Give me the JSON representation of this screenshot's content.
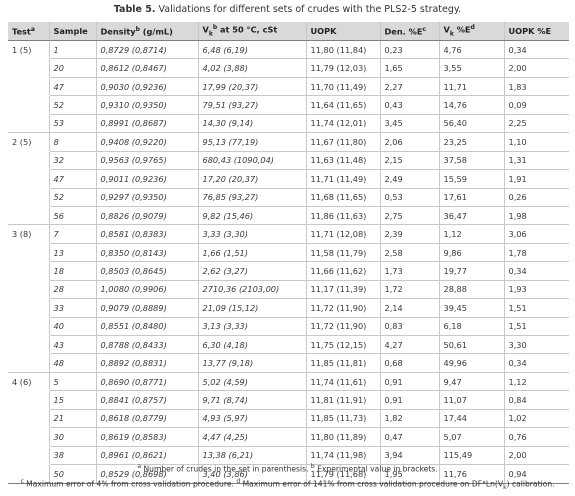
{
  "caption": {
    "label": "Table 5.",
    "text": "Validations for different sets of crudes with the PLS2-5 strategy."
  },
  "headers": {
    "test": "Test",
    "test_mark": "a",
    "sample": "Sample",
    "density": "Density",
    "density_mark": "b",
    "density_unit": " (g/mL)",
    "vk_main": "V",
    "vk_sub": "k",
    "vk_mark": "b",
    "vk_rest": " at 50 °C, cSt",
    "uopk": "UOPK",
    "den_err": "Den. %E",
    "den_err_mark": "c",
    "vk_err_main": "V",
    "vk_err_sub": "k",
    "vk_err_rest": " %E",
    "vk_err_mark": "d",
    "uopk_err": "UOPK %E"
  },
  "groups": [
    {
      "test": "1 (5)",
      "rows": [
        [
          "1",
          "0,8729 (0,8714)",
          "6,48 (6,19)",
          "11,80 (11,84)",
          "0,23",
          "4,76",
          "0,34"
        ],
        [
          "20",
          "0,8612 (0,8467)",
          "4,02 (3,88)",
          "11,79 (12,03)",
          "1,65",
          "3,55",
          "2,00"
        ],
        [
          "47",
          "0,9030 (0,9236)",
          "17,99 (20,37)",
          "11,70 (11,49)",
          "2,27",
          "11,71",
          "1,83"
        ],
        [
          "52",
          "0,9310 (0,9350)",
          "79,51 (93,27)",
          "11,64 (11,65)",
          "0,43",
          "14,76",
          "0,09"
        ],
        [
          "53",
          "0,8991 (0,8687)",
          "14,30 (9,14)",
          "11,74 (12,01)",
          "3,45",
          "56,40",
          "2,25"
        ]
      ]
    },
    {
      "test": "2 (5)",
      "rows": [
        [
          "8",
          "0,9408 (0,9220)",
          "95,13 (77,19)",
          "11,67 (11,80)",
          "2,06",
          "23,25",
          "1,10"
        ],
        [
          "32",
          "0,9563 (0,9765)",
          "680,43 (1090,04)",
          "11,63 (11,48)",
          "2,15",
          "37,58",
          "1,31"
        ],
        [
          "47",
          "0,9011 (0,9236)",
          "17,20 (20,37)",
          "11,71 (11,49)",
          "2,49",
          "15,59",
          "1,91"
        ],
        [
          "52",
          "0,9297 (0,9350)",
          "76,85 (93,27)",
          "11,68 (11,65)",
          "0,53",
          "17,61",
          "0,26"
        ],
        [
          "56",
          "0,8826 (0,9079)",
          "9,82 (15,46)",
          "11,86 (11,63)",
          "2,75",
          "36,47",
          "1,98"
        ]
      ]
    },
    {
      "test": "3 (8)",
      "rows": [
        [
          "7",
          "0,8581 (0,8383)",
          "3,33 (3,30)",
          "11,71 (12,08)",
          "2,39",
          "1,12",
          "3,06"
        ],
        [
          "13",
          "0,8350 (0,8143)",
          "1,66 (1,51)",
          "11,58 (11,79)",
          "2,58",
          "9,86",
          "1,78"
        ],
        [
          "18",
          "0,8503 (0,8645)",
          "2,62 (3,27)",
          "11,66 (11,62)",
          "1,73",
          "19,77",
          "0,34"
        ],
        [
          "28",
          "1,0080 (0,9906)",
          "2710,36 (2103,00)",
          "11,17 (11,39)",
          "1,72",
          "28,88",
          "1,93"
        ],
        [
          "33",
          "0,9079 (0,8889)",
          "21,09 (15,12)",
          "11,72 (11,90)",
          "2,14",
          "39,45",
          "1,51"
        ],
        [
          "40",
          "0,8551 (0,8480)",
          "3,13 (3,33)",
          "11,72 (11,90)",
          "0,83",
          "6,18",
          "1,51"
        ],
        [
          "43",
          "0,8788 (0,8433)",
          "6,30 (4,18)",
          "11,75 (12,15)",
          "4,27",
          "50,61",
          "3,30"
        ],
        [
          "48",
          "0,8892 (0,8831)",
          "13,77 (9,18)",
          "11,85 (11,81)",
          "0,68",
          "49,96",
          "0,34"
        ]
      ]
    },
    {
      "test": "4 (6)",
      "rows": [
        [
          "5",
          "0,8690 (0,8771)",
          "5,02 (4,59)",
          "11,74 (11,61)",
          "0,91",
          "9,47",
          "1,12"
        ],
        [
          "15",
          "0,8841 (0,8757)",
          "9,71 (8,74)",
          "11,81 (11,91)",
          "0,91",
          "11,07",
          "0,84"
        ],
        [
          "21",
          "0,8618 (0,8779)",
          "4,93 (5,97)",
          "11,85 (11,73)",
          "1,82",
          "17,44",
          "1,02"
        ],
        [
          "30",
          "0,8619 (0,8583)",
          "4,47 (4,25)",
          "11,80 (11,89)",
          "0,47",
          "5,07",
          "0,76"
        ],
        [
          "38",
          "0,8961 (0,8621)",
          "13,38 (6,21)",
          "11,74 (11,98)",
          "3,94",
          "115,49",
          "2,00"
        ],
        [
          "50",
          "0,8529 (0,8698)",
          "3,40 (3,86)",
          "11,79 (11,68)",
          "1,95",
          "11,76",
          "0,94"
        ]
      ]
    }
  ],
  "footnotes": {
    "a_mark": "a",
    "a_text": " Number of crudes in the set in parenthesis. ",
    "b_mark": "b",
    "b_text": " Experimental value in brackets.",
    "c_mark": "c",
    "c_text": " Maximum error of 4% from cross validation procedure. ",
    "d_mark": "d",
    "d_text": " Maximum error of 141% from cross validation procedure on DF*Ln(V",
    "d_sub": "k",
    "d_tail": ") calibration."
  }
}
